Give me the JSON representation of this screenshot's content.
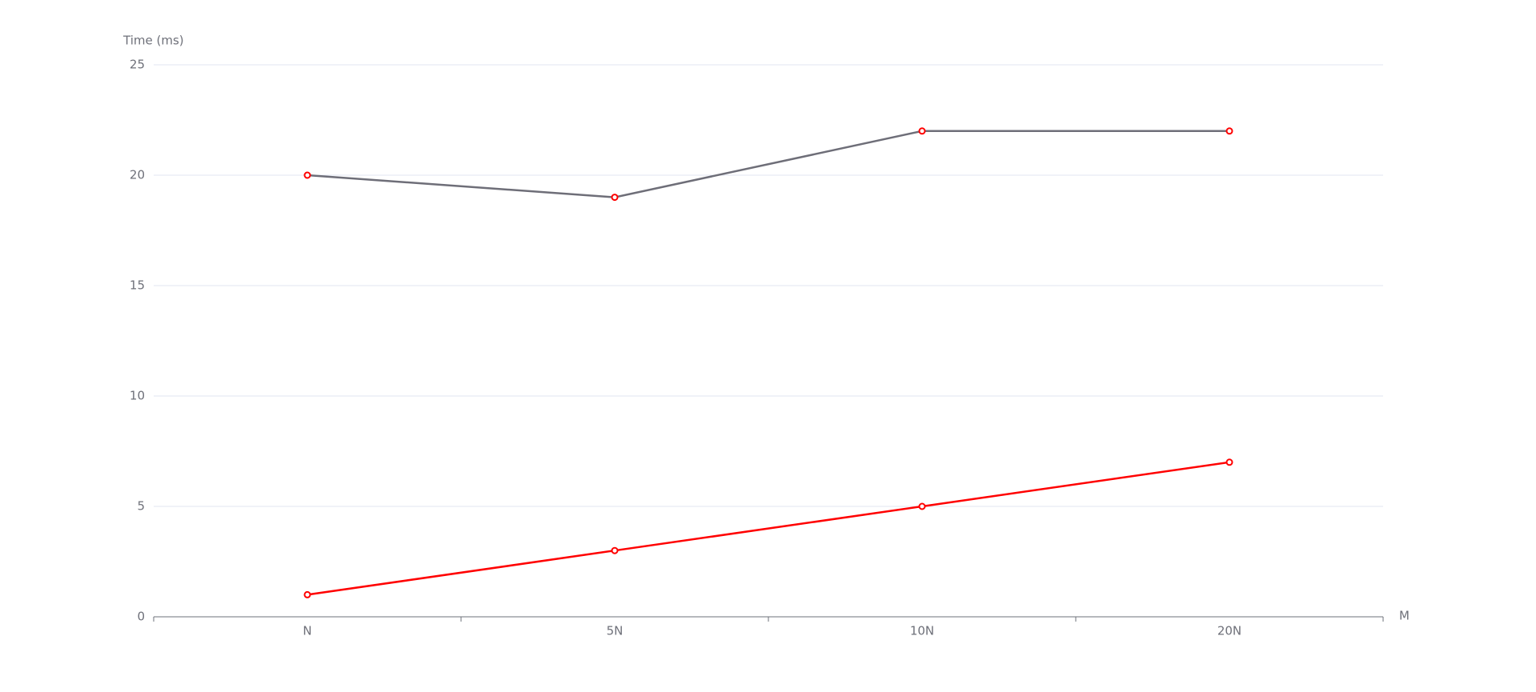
{
  "chart_data": {
    "type": "line",
    "y_axis_label": "Time (ms)",
    "x_axis_label": "M",
    "categories": [
      "N",
      "5N",
      "10N",
      "20N"
    ],
    "series": [
      {
        "color": "#6e6e78",
        "values": [
          20,
          19,
          22,
          22
        ]
      },
      {
        "color": "#ff0000",
        "values": [
          1,
          3,
          5,
          7
        ]
      }
    ],
    "point_color": "#ff0000",
    "ylim": [
      0,
      25
    ],
    "yticks": [
      0,
      5,
      10,
      15,
      20,
      25
    ],
    "grid": true
  }
}
